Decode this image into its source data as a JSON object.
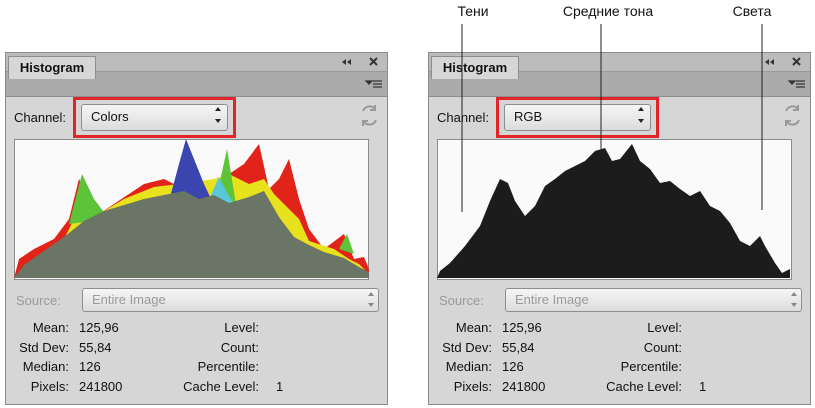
{
  "annotations": [
    "Тени",
    "Средние тона",
    "Света"
  ],
  "panels": [
    {
      "tab": "Histogram",
      "channel_label": "Channel:",
      "channel": "Colors",
      "source_label": "Source:",
      "source": "Entire Image",
      "stats_left": [
        {
          "label": "Mean:",
          "value": "125,96"
        },
        {
          "label": "Std Dev:",
          "value": "55,84"
        },
        {
          "label": "Median:",
          "value": "126"
        },
        {
          "label": "Pixels:",
          "value": "241800"
        }
      ],
      "stats_right": [
        {
          "label": "Level:"
        },
        {
          "label": "Count:"
        },
        {
          "label": "Percentile:"
        },
        {
          "label": "Cache Level:",
          "value": "1"
        }
      ]
    },
    {
      "tab": "Histogram",
      "channel_label": "Channel:",
      "channel": "RGB",
      "source_label": "Source:",
      "source": "Entire Image",
      "stats_left": [
        {
          "label": "Mean:",
          "value": "125,96"
        },
        {
          "label": "Std Dev:",
          "value": "55,84"
        },
        {
          "label": "Median:",
          "value": "126"
        },
        {
          "label": "Pixels:",
          "value": "241800"
        }
      ],
      "stats_right": [
        {
          "label": "Level:"
        },
        {
          "label": "Count:"
        },
        {
          "label": "Percentile:"
        },
        {
          "label": "Cache Level:",
          "value": "1"
        }
      ]
    }
  ]
}
